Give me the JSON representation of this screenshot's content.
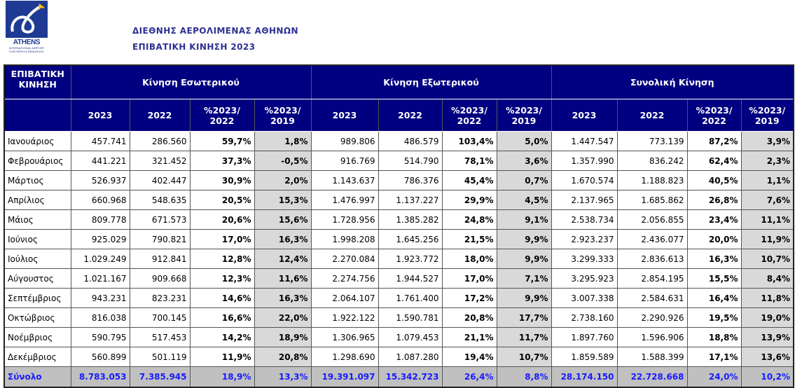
{
  "logo": {
    "name": "ATHENS",
    "sub1": "INTERNATIONAL AIRPORT",
    "sub2": "ΕΛΕΥΘΕΡΙΟΣ ΒΕΝΙΖΕΛΟΣ"
  },
  "header": {
    "title1": "ΔΙΕΘΝΗΣ ΑΕΡΟΛΙΜΕΝΑΣ ΑΘΗΝΩΝ",
    "title2": "ΕΠΙΒΑΤΙΚΗ ΚΙΝΗΣΗ 2023"
  },
  "table": {
    "corner": "ΕΠΙΒΑΤΙΚΗ ΚΙΝΗΣΗ",
    "groups": [
      "Κίνηση Εσωτερικού",
      "Κίνηση Εξωτερικού",
      "Συνολική Κίνηση"
    ],
    "subheaders": [
      "2023",
      "2022",
      "%2023/ 2022",
      "%2023/ 2019"
    ],
    "rows": [
      [
        "Ιανουάριος",
        "457.741",
        "286.560",
        "59,7%",
        "1,8%",
        "989.806",
        "486.579",
        "103,4%",
        "5,0%",
        "1.447.547",
        "773.139",
        "87,2%",
        "3,9%"
      ],
      [
        "Φεβρουάριος",
        "441.221",
        "321.452",
        "37,3%",
        "-0,5%",
        "916.769",
        "514.790",
        "78,1%",
        "3,6%",
        "1.357.990",
        "836.242",
        "62,4%",
        "2,3%"
      ],
      [
        "Μάρτιος",
        "526.937",
        "402.447",
        "30,9%",
        "2,0%",
        "1.143.637",
        "786.376",
        "45,4%",
        "0,7%",
        "1.670.574",
        "1.188.823",
        "40,5%",
        "1,1%"
      ],
      [
        "Απρίλιος",
        "660.968",
        "548.635",
        "20,5%",
        "15,3%",
        "1.476.997",
        "1.137.227",
        "29,9%",
        "4,5%",
        "2.137.965",
        "1.685.862",
        "26,8%",
        "7,6%"
      ],
      [
        "Μάιος",
        "809.778",
        "671.573",
        "20,6%",
        "15,6%",
        "1.728.956",
        "1.385.282",
        "24,8%",
        "9,1%",
        "2.538.734",
        "2.056.855",
        "23,4%",
        "11,1%"
      ],
      [
        "Ιούνιος",
        "925.029",
        "790.821",
        "17,0%",
        "16,3%",
        "1.998.208",
        "1.645.256",
        "21,5%",
        "9,9%",
        "2.923.237",
        "2.436.077",
        "20,0%",
        "11,9%"
      ],
      [
        "Ιούλιος",
        "1.029.249",
        "912.841",
        "12,8%",
        "12,4%",
        "2.270.084",
        "1.923.772",
        "18,0%",
        "9,9%",
        "3.299.333",
        "2.836.613",
        "16,3%",
        "10,7%"
      ],
      [
        "Αύγουστος",
        "1.021.167",
        "909.668",
        "12,3%",
        "11,6%",
        "2.274.756",
        "1.944.527",
        "17,0%",
        "7,1%",
        "3.295.923",
        "2.854.195",
        "15,5%",
        "8,4%"
      ],
      [
        "Σεπτέμβριος",
        "943.231",
        "823.231",
        "14,6%",
        "16,3%",
        "2.064.107",
        "1.761.400",
        "17,2%",
        "9,9%",
        "3.007.338",
        "2.584.631",
        "16,4%",
        "11,8%"
      ],
      [
        "Οκτώβριος",
        "816.038",
        "700.145",
        "16,6%",
        "22,0%",
        "1.922.122",
        "1.590.781",
        "20,8%",
        "17,7%",
        "2.738.160",
        "2.290.926",
        "19,5%",
        "19,0%"
      ],
      [
        "Νοέμβριος",
        "590.795",
        "517.453",
        "14,2%",
        "18,9%",
        "1.306.965",
        "1.079.453",
        "21,1%",
        "11,7%",
        "1.897.760",
        "1.596.906",
        "18,8%",
        "13,9%"
      ],
      [
        "Δεκέμβριος",
        "560.899",
        "501.119",
        "11,9%",
        "20,8%",
        "1.298.690",
        "1.087.280",
        "19,4%",
        "10,7%",
        "1.859.589",
        "1.588.399",
        "17,1%",
        "13,6%"
      ]
    ],
    "total": [
      "Σύνολο",
      "8.783.053",
      "7.385.945",
      "18,9%",
      "13,3%",
      "19.391.097",
      "15.342.723",
      "26,4%",
      "8,8%",
      "28.174.150",
      "22.728.668",
      "24,0%",
      "10,2%"
    ]
  }
}
